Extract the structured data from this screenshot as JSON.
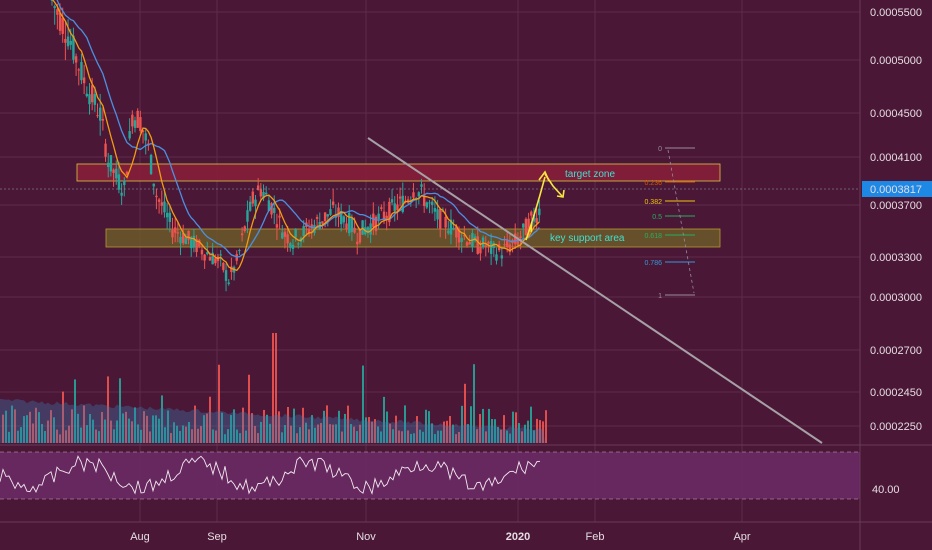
{
  "chart_data": {
    "type": "candlestick",
    "price_axis": {
      "ticks": [
        "0.0005500",
        "0.0005000",
        "0.0004500",
        "0.0004100",
        "0.0003700",
        "0.0003300",
        "0.0003000",
        "0.0002700",
        "0.0002450",
        "0.0002250"
      ],
      "current_price": "0.0003817"
    },
    "rsi_axis": {
      "ticks": [
        "40.00"
      ]
    },
    "time_axis": {
      "ticks": [
        "Aug",
        "Sep",
        "Nov",
        "2020",
        "Feb",
        "Apr"
      ]
    },
    "annotations": {
      "target_zone": "target zone",
      "key_support": "key support area"
    },
    "fib_levels": [
      "0",
      "0.236",
      "0.382",
      "0.5",
      "0.618",
      "0.786",
      "1"
    ],
    "price_series_approx": [
      0.00056,
      0.000545,
      0.00053,
      0.00051,
      0.00049,
      0.000475,
      0.00046,
      0.00042,
      0.000405,
      0.000395,
      0.00046,
      0.000455,
      0.00043,
      0.00039,
      0.000375,
      0.00036,
      0.000355,
      0.00035,
      0.000345,
      0.00034,
      0.000335,
      0.00033,
      0.000315,
      0.00033,
      0.00036,
      0.000385,
      0.000395,
      0.000385,
      0.00037,
      0.000355,
      0.00035,
      0.000355,
      0.00036,
      0.000365,
      0.00037,
      0.000375,
      0.00037,
      0.000365,
      0.000355,
      0.00036,
      0.000365,
      0.00037,
      0.000375,
      0.00038,
      0.000385,
      0.000395,
      0.00039,
      0.00038,
      0.00037,
      0.000365,
      0.00036,
      0.000355,
      0.00035,
      0.000345,
      0.000345,
      0.00034,
      0.00034,
      0.000345,
      0.00035,
      0.00036,
      0.00037,
      0.00038
    ],
    "colors": {
      "background": "#4a1836",
      "up": "#26a69a",
      "down": "#ef5350",
      "ma_fast": "#f39c12",
      "ma_slow": "#4a90e2",
      "annotation": "#f5e642",
      "text_annotation": "#40e0d0"
    }
  }
}
